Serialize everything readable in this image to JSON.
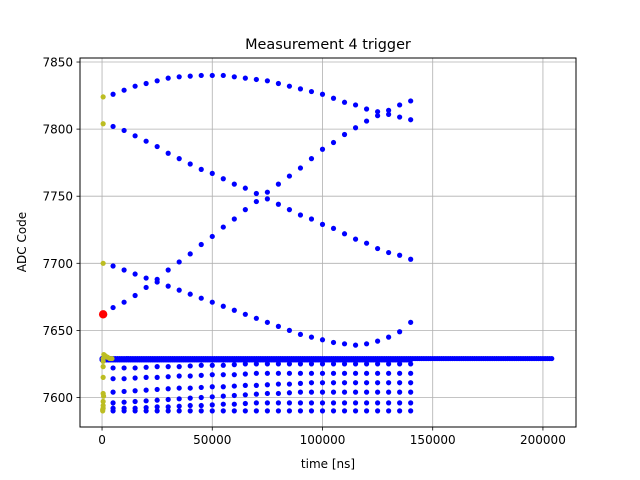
{
  "chart_data": {
    "type": "scatter",
    "title": "Measurement 4 trigger",
    "xlabel": "time [ns]",
    "ylabel": "ADC Code",
    "xlim": [
      -10000,
      215000
    ],
    "ylim": [
      7578,
      7853
    ],
    "xticks": [
      0,
      50000,
      100000,
      150000,
      200000
    ],
    "yticks": [
      7600,
      7650,
      7700,
      7750,
      7800,
      7850
    ],
    "xtick_labels": [
      "0",
      "50000",
      "100000",
      "150000",
      "200000"
    ],
    "ytick_labels": [
      "7600",
      "7650",
      "7700",
      "7750",
      "7800",
      "7850"
    ],
    "grid": true,
    "colors": {
      "main": "#0000ff",
      "start": "#bcbd22",
      "highlight": "#ff0000",
      "grid": "#b0b0b0"
    },
    "series": [
      {
        "role": "main",
        "curves": [
          {
            "x": [
              5000,
              10000,
              15000,
              20000,
              25000,
              30000,
              35000,
              40000,
              45000,
              50000,
              55000,
              60000,
              65000,
              70000,
              75000,
              80000,
              85000,
              90000,
              95000,
              100000,
              105000,
              110000,
              115000,
              120000,
              125000,
              130000,
              135000,
              140000
            ],
            "y": [
              7826,
              7829,
              7832,
              7834,
              7836,
              7838,
              7839,
              7839.5,
              7840,
              7840,
              7840,
              7839,
              7838,
              7837,
              7836,
              7834,
              7832,
              7830,
              7828,
              7826,
              7823,
              7820,
              7818,
              7815,
              7813,
              7811,
              7809,
              7807
            ]
          },
          {
            "x": [
              5000,
              10000,
              15000,
              20000,
              25000,
              30000,
              35000,
              40000,
              45000,
              50000,
              55000,
              60000,
              65000,
              70000,
              75000,
              80000,
              85000,
              90000,
              95000,
              100000,
              105000,
              110000,
              115000,
              120000,
              125000,
              130000,
              135000,
              140000
            ],
            "y": [
              7802,
              7799,
              7795,
              7791,
              7787,
              7782,
              7778,
              7774,
              7770,
              7767,
              7763,
              7759,
              7756,
              7752,
              7748,
              7744,
              7740,
              7736,
              7733,
              7729,
              7726,
              7722,
              7718,
              7715,
              7711,
              7708,
              7706,
              7703
            ]
          },
          {
            "x": [
              5000,
              10000,
              15000,
              20000,
              25000,
              30000,
              35000,
              40000,
              45000,
              50000,
              55000,
              60000,
              65000,
              70000,
              75000,
              80000,
              85000,
              90000,
              95000,
              100000,
              105000,
              110000,
              115000,
              120000,
              125000,
              130000,
              135000,
              140000
            ],
            "y": [
              7667,
              7671,
              7676,
              7682,
              7688,
              7695,
              7701,
              7707,
              7714,
              7720,
              7727,
              7733,
              7740,
              7746,
              7753,
              7759,
              7765,
              7771,
              7778,
              7785,
              7790,
              7796,
              7801,
              7806,
              7810,
              7814,
              7818,
              7821
            ]
          },
          {
            "x": [
              5000,
              10000,
              15000,
              20000,
              25000,
              30000,
              35000,
              40000,
              45000,
              50000,
              55000,
              60000,
              65000,
              70000,
              75000,
              80000,
              85000,
              90000,
              95000,
              100000,
              105000,
              110000,
              115000,
              120000,
              125000,
              130000,
              135000,
              140000
            ],
            "y": [
              7698,
              7695,
              7692,
              7689,
              7686,
              7683,
              7680,
              7677,
              7674,
              7671,
              7668,
              7665,
              7662,
              7659,
              7656,
              7653,
              7650,
              7647,
              7645,
              7643,
              7641,
              7640,
              7639,
              7640,
              7642,
              7645,
              7649,
              7656
            ]
          },
          {
            "x": [
              5000,
              10000,
              15000,
              20000,
              25000,
              30000,
              35000,
              40000,
              45000,
              50000,
              55000,
              60000,
              65000,
              70000,
              75000,
              80000,
              85000,
              90000,
              95000,
              100000,
              105000,
              110000,
              115000,
              120000,
              125000,
              130000,
              135000,
              140000
            ],
            "y": [
              7622,
              7622,
              7622,
              7622.5,
              7623,
              7623,
              7623,
              7623.5,
              7624,
              7624,
              7624,
              7624.5,
              7625,
              7625,
              7625,
              7625,
              7625,
              7625,
              7625,
              7625,
              7625,
              7625,
              7625,
              7625,
              7625,
              7625,
              7625,
              7625
            ]
          },
          {
            "x": [
              5000,
              10000,
              15000,
              20000,
              25000,
              30000,
              35000,
              40000,
              45000,
              50000,
              55000,
              60000,
              65000,
              70000,
              75000,
              80000,
              85000,
              90000,
              95000,
              100000,
              105000,
              110000,
              115000,
              120000,
              125000,
              130000,
              135000,
              140000
            ],
            "y": [
              7614,
              7614,
              7614.5,
              7615,
              7615,
              7615.5,
              7616,
              7616,
              7616.5,
              7617,
              7617,
              7617,
              7617.5,
              7618,
              7618,
              7618,
              7618,
              7618,
              7618,
              7618,
              7618,
              7618,
              7618,
              7618,
              7618,
              7618,
              7618,
              7618
            ]
          },
          {
            "x": [
              5000,
              10000,
              15000,
              20000,
              25000,
              30000,
              35000,
              40000,
              45000,
              50000,
              55000,
              60000,
              65000,
              70000,
              75000,
              80000,
              85000,
              90000,
              95000,
              100000,
              105000,
              110000,
              115000,
              120000,
              125000,
              130000,
              135000,
              140000
            ],
            "y": [
              7604,
              7604.5,
              7605,
              7605.5,
              7606,
              7606.5,
              7607,
              7607,
              7607.5,
              7608,
              7608,
              7608.5,
              7609,
              7609,
              7609.5,
              7610,
              7610,
              7610.5,
              7611,
              7611,
              7611,
              7611,
              7611,
              7611,
              7611,
              7611,
              7611,
              7611
            ]
          },
          {
            "x": [
              5000,
              10000,
              15000,
              20000,
              25000,
              30000,
              35000,
              40000,
              45000,
              50000,
              55000,
              60000,
              65000,
              70000,
              75000,
              80000,
              85000,
              90000,
              95000,
              100000,
              105000,
              110000,
              115000,
              120000,
              125000,
              130000,
              135000,
              140000
            ],
            "y": [
              7596,
              7596.5,
              7597,
              7597.5,
              7598,
              7598.5,
              7599,
              7599.5,
              7600,
              7600.5,
              7601,
              7601.5,
              7602,
              7602.5,
              7603,
              7603,
              7603.5,
              7604,
              7604,
              7604,
              7604,
              7604,
              7604,
              7604,
              7604,
              7604,
              7604,
              7604
            ]
          },
          {
            "x": [
              5000,
              10000,
              15000,
              20000,
              25000,
              30000,
              35000,
              40000,
              45000,
              50000,
              55000,
              60000,
              65000,
              70000,
              75000,
              80000,
              85000,
              90000,
              95000,
              100000,
              105000,
              110000,
              115000,
              120000,
              125000,
              130000,
              135000,
              140000
            ],
            "y": [
              7592,
              7592,
              7592,
              7592.5,
              7593,
              7593,
              7593.5,
              7594,
              7594,
              7594.5,
              7595,
              7595,
              7595.5,
              7596,
              7596,
              7596,
              7596,
              7596,
              7596,
              7596,
              7596,
              7596,
              7596,
              7596,
              7596,
              7596,
              7596,
              7596
            ]
          },
          {
            "x": [
              5000,
              10000,
              15000,
              20000,
              25000,
              30000,
              35000,
              40000,
              45000,
              50000,
              55000,
              60000,
              65000,
              70000,
              75000,
              80000,
              85000,
              90000,
              95000,
              100000,
              105000,
              110000,
              115000,
              120000,
              125000,
              130000,
              135000,
              140000
            ],
            "y": [
              7590,
              7590,
              7590,
              7590,
              7590,
              7590,
              7590,
              7590,
              7590,
              7590,
              7590,
              7590,
              7590,
              7590,
              7590,
              7590,
              7590,
              7590,
              7590,
              7590,
              7590,
              7590,
              7590,
              7590,
              7590,
              7590,
              7590,
              7590
            ]
          },
          {
            "x_range": [
              0,
              204000
            ],
            "x_step": 1000,
            "y": 7629
          },
          {
            "x_range": [
              0,
              140000
            ],
            "x_step": 1000,
            "y": 7628
          }
        ]
      },
      {
        "role": "start",
        "points": [
          {
            "x": 500,
            "y": 7824
          },
          {
            "x": 500,
            "y": 7804
          },
          {
            "x": 500,
            "y": 7700
          },
          {
            "x": 800,
            "y": 7632
          },
          {
            "x": 1500,
            "y": 7631
          },
          {
            "x": 2500,
            "y": 7630
          },
          {
            "x": 3500,
            "y": 7629
          },
          {
            "x": 4500,
            "y": 7629
          },
          {
            "x": 500,
            "y": 7629
          },
          {
            "x": 500,
            "y": 7627
          },
          {
            "x": 500,
            "y": 7623
          },
          {
            "x": 500,
            "y": 7615
          },
          {
            "x": 500,
            "y": 7603
          },
          {
            "x": 700,
            "y": 7601
          },
          {
            "x": 500,
            "y": 7597
          },
          {
            "x": 500,
            "y": 7594
          },
          {
            "x": 500,
            "y": 7592
          },
          {
            "x": 300,
            "y": 7591
          },
          {
            "x": 300,
            "y": 7590
          }
        ]
      },
      {
        "role": "highlight",
        "points": [
          {
            "x": 500,
            "y": 7662
          }
        ]
      }
    ]
  }
}
